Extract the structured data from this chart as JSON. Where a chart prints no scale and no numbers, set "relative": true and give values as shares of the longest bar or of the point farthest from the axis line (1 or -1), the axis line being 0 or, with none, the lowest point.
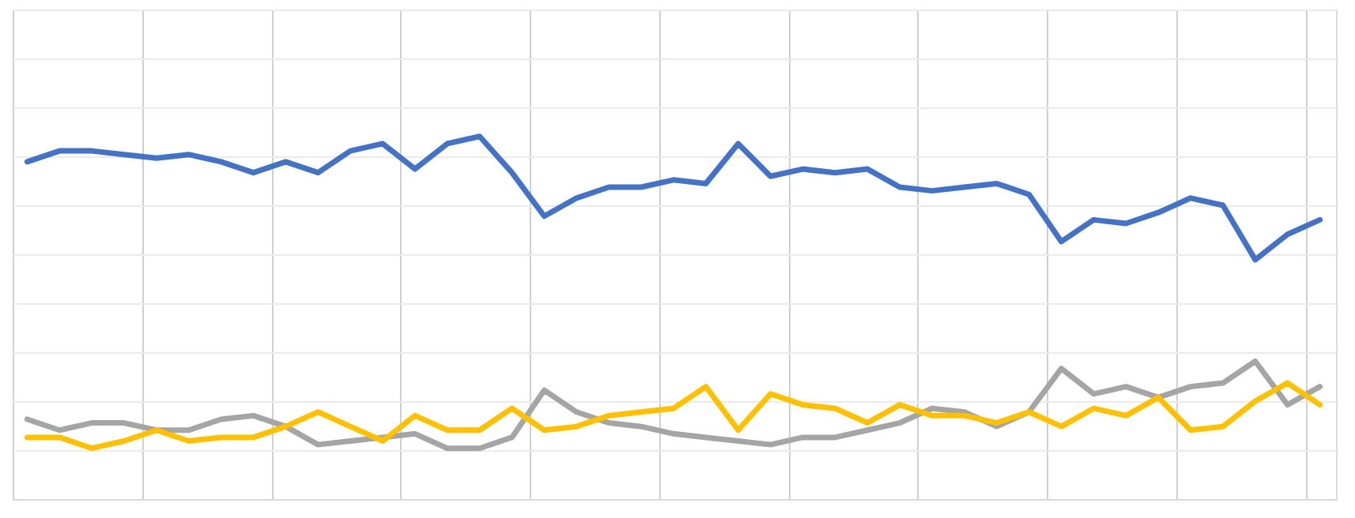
{
  "chart_data": {
    "type": "line",
    "relative": true,
    "grid": true,
    "legend": false,
    "marker": "none",
    "line_style": "solid",
    "categories": [
      null,
      null,
      null,
      null,
      null,
      null,
      null,
      null,
      null,
      null,
      null,
      null,
      null,
      null,
      null,
      null,
      null,
      null,
      null,
      null,
      null,
      null,
      null,
      null,
      null,
      null,
      null,
      null,
      null,
      null,
      null,
      null,
      null,
      null,
      null,
      null,
      null,
      null,
      null,
      null,
      null
    ],
    "series": [
      {
        "color": "#4472c4",
        "values": [
          0.93,
          0.96,
          0.96,
          0.95,
          0.94,
          0.95,
          0.93,
          0.9,
          0.93,
          0.9,
          0.96,
          0.98,
          0.91,
          0.98,
          1,
          0.9,
          0.78,
          0.83,
          0.86,
          0.86,
          0.88,
          0.87,
          0.98,
          0.89,
          0.91,
          0.9,
          0.91,
          0.86,
          0.85,
          0.86,
          0.87,
          0.84,
          0.71,
          0.77,
          0.76,
          0.79,
          0.83,
          0.81,
          0.66,
          0.73,
          0.77
        ]
      },
      {
        "color": "#a5a5a5",
        "values": [
          0.22,
          0.19,
          0.21,
          0.21,
          0.19,
          0.19,
          0.22,
          0.23,
          0.2,
          0.15,
          0.16,
          0.17,
          0.18,
          0.14,
          0.14,
          0.17,
          0.3,
          0.24,
          0.21,
          0.2,
          0.18,
          0.17,
          0.16,
          0.15,
          0.17,
          0.17,
          0.19,
          0.21,
          0.25,
          0.24,
          0.2,
          0.24,
          0.36,
          0.29,
          0.31,
          0.28,
          0.31,
          0.32,
          0.38,
          0.26,
          0.31
        ]
      },
      {
        "color": "#ffc000",
        "values": [
          0.17,
          0.17,
          0.14,
          0.16,
          0.19,
          0.16,
          0.17,
          0.17,
          0.2,
          0.24,
          0.2,
          0.16,
          0.23,
          0.19,
          0.19,
          0.25,
          0.19,
          0.2,
          0.23,
          0.24,
          0.25,
          0.31,
          0.19,
          0.29,
          0.26,
          0.25,
          0.21,
          0.26,
          0.23,
          0.23,
          0.21,
          0.24,
          0.2,
          0.25,
          0.23,
          0.28,
          0.19,
          0.2,
          0.27,
          0.32,
          0.26
        ]
      }
    ]
  }
}
